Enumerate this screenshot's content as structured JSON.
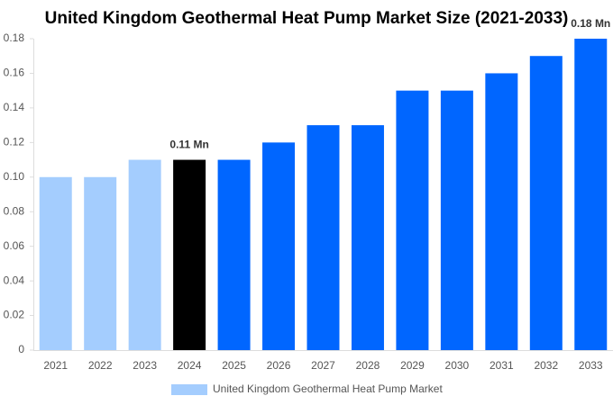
{
  "chart_data": {
    "type": "bar",
    "title": "United Kingdom Geothermal Heat Pump Market Size (2021-2033)",
    "categories": [
      "2021",
      "2022",
      "2023",
      "2024",
      "2025",
      "2026",
      "2027",
      "2028",
      "2029",
      "2030",
      "2031",
      "2032",
      "2033"
    ],
    "series": [
      {
        "name": "United Kingdom Geothermal Heat Pump Market",
        "color": "#a4cdfe",
        "values": [
          0.1,
          0.1,
          0.11,
          0.11,
          0.11,
          0.12,
          0.13,
          0.13,
          0.15,
          0.15,
          0.16,
          0.17,
          0.18
        ],
        "colors": [
          "#a4cdfe",
          "#a4cdfe",
          "#a4cdfe",
          "#000000",
          "#0066ff",
          "#0066ff",
          "#0066ff",
          "#0066ff",
          "#0066ff",
          "#0066ff",
          "#0066ff",
          "#0066ff",
          "#0066ff"
        ],
        "value_labels": [
          null,
          null,
          null,
          "0.11 Mn",
          null,
          null,
          null,
          null,
          null,
          null,
          null,
          null,
          "0.18 Mn"
        ]
      }
    ],
    "ylim": [
      0,
      0.18
    ],
    "yticks": [
      0,
      0.02,
      0.04,
      0.06,
      0.08,
      {
        "value": 0.1,
        "label": "0.10"
      },
      0.12,
      0.14,
      0.16,
      0.18
    ],
    "grid": false,
    "legend": "bottom"
  }
}
